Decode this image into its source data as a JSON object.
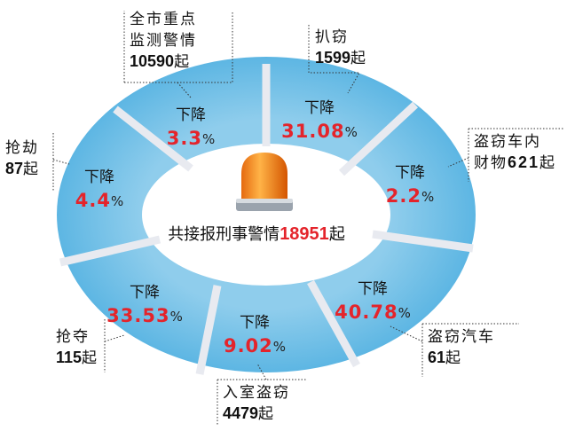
{
  "center": {
    "text": "共接报刑事警情",
    "count": 18951
  },
  "decrease_label": "下降",
  "percent_unit": "%",
  "case_unit": "起",
  "segments": [
    {
      "change": 3.3,
      "name_lines": [
        "全市重点",
        "监测警情"
      ],
      "count": 10590
    },
    {
      "change": 31.08,
      "name_lines": [
        "扒窃"
      ],
      "count": 1599
    },
    {
      "change": 2.2,
      "name_lines": [
        "盗窃车内",
        "财物"
      ],
      "count": 621
    },
    {
      "change": 40.78,
      "name_lines": [
        "盗窃汽车"
      ],
      "count": 61
    },
    {
      "change": 9.02,
      "name_lines": [
        "入室盗窃"
      ],
      "count": 4479
    },
    {
      "change": 33.53,
      "name_lines": [
        "抢夺"
      ],
      "count": 115
    },
    {
      "change": 4.4,
      "name_lines": [
        "抢劫"
      ],
      "count": 87
    }
  ]
}
